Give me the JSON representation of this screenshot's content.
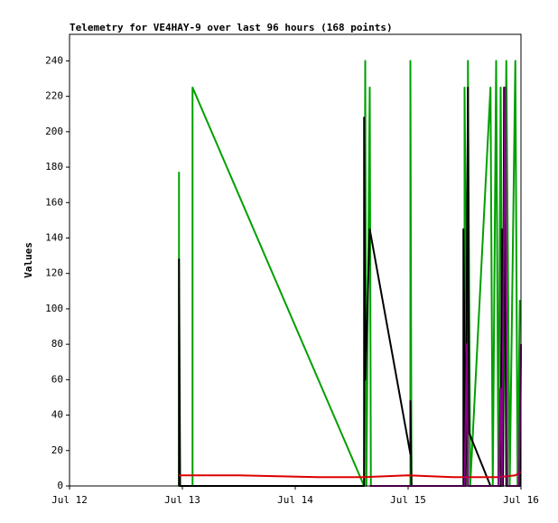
{
  "chart_data": {
    "type": "line",
    "title": "Telemetry for VE4HAY-9 over last 96 hours (168 points)",
    "y_label": "Values",
    "xlim": [
      0,
      4
    ],
    "xticks": [
      {
        "value": 0,
        "label": "Jul 12"
      },
      {
        "value": 1,
        "label": "Jul 13"
      },
      {
        "value": 2,
        "label": "Jul 14"
      },
      {
        "value": 3,
        "label": "Jul 15"
      },
      {
        "value": 4,
        "label": "Jul 16"
      }
    ],
    "ylim": [
      0,
      255
    ],
    "yticks": [
      0,
      20,
      40,
      60,
      80,
      100,
      120,
      140,
      160,
      180,
      200,
      220,
      240
    ],
    "grid": false,
    "series": [
      {
        "color": "#00a000",
        "x": [
          0.97,
          0.97,
          0.97,
          1.09,
          1.09,
          2.61,
          2.62,
          2.63,
          2.66,
          2.67,
          3.02,
          3.02,
          3.03,
          3.5,
          3.5,
          3.53,
          3.53,
          3.55,
          3.73,
          3.75,
          3.78,
          3.8,
          3.82,
          3.84,
          3.87,
          3.9,
          3.95,
          3.97,
          3.99
        ],
        "values": [
          0,
          177,
          0,
          0,
          225,
          0,
          240,
          0,
          225,
          0,
          0,
          240,
          0,
          0,
          225,
          0,
          240,
          0,
          225,
          0,
          240,
          0,
          225,
          0,
          240,
          0,
          240,
          0,
          105
        ]
      },
      {
        "color": "#000000",
        "x": [
          0.97,
          0.97,
          0.98,
          2.61,
          2.61,
          2.62,
          2.66,
          3.02,
          3.02,
          3.03,
          3.49,
          3.49,
          3.51,
          3.53,
          3.54,
          3.73,
          3.82,
          3.83,
          3.84,
          3.85,
          3.87,
          3.99,
          4.0
        ],
        "values": [
          0,
          128,
          0,
          0,
          208,
          60,
          145,
          18,
          48,
          0,
          0,
          145,
          0,
          225,
          30,
          0,
          0,
          145,
          0,
          225,
          0,
          0,
          80
        ]
      },
      {
        "color": "#dd0000",
        "x": [
          0.97,
          1.5,
          2.2,
          2.6,
          3.0,
          3.4,
          3.8,
          3.95,
          4.0
        ],
        "values": [
          6,
          6,
          5,
          5,
          6,
          5,
          5,
          6,
          8
        ]
      },
      {
        "color": "#880088",
        "x": [
          2.66,
          3.02,
          3.5,
          3.52,
          3.53,
          3.8,
          3.82,
          3.83,
          3.86,
          3.88,
          3.98,
          4.0
        ],
        "values": [
          0,
          0,
          0,
          80,
          0,
          0,
          55,
          0,
          225,
          0,
          0,
          80
        ]
      }
    ]
  }
}
